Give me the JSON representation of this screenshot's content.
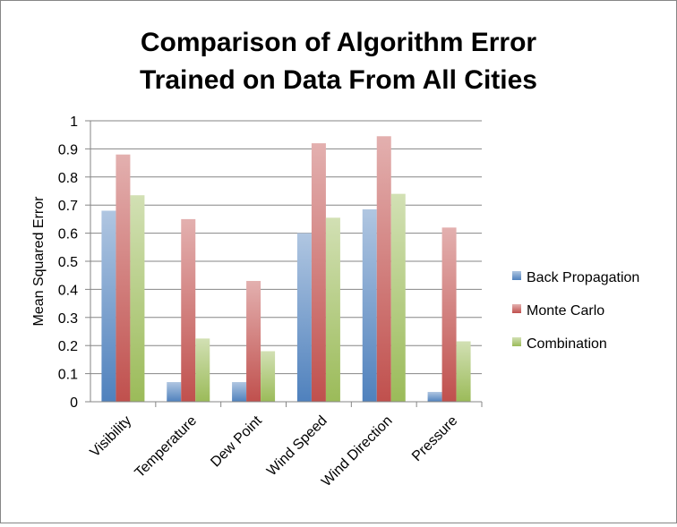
{
  "chart_data": {
    "type": "bar",
    "title_lines": [
      "Comparison of Algorithm Error",
      "Trained on Data From All Cities"
    ],
    "xlabel": "",
    "ylabel": "Mean Squared Error",
    "ylim": [
      0,
      1
    ],
    "yticks": [
      "0",
      "0.1",
      "0.2",
      "0.3",
      "0.4",
      "0.5",
      "0.6",
      "0.7",
      "0.8",
      "0.9",
      "1"
    ],
    "grid": true,
    "legend_position": "right",
    "categories": [
      "Visibility",
      "Temperature",
      "Dew Point",
      "Wind Speed",
      "Wind Direction",
      "Pressure"
    ],
    "series": [
      {
        "name": "Back Propagation",
        "color": "#4F81BD",
        "values": [
          0.68,
          0.07,
          0.07,
          0.6,
          0.685,
          0.035
        ]
      },
      {
        "name": "Monte Carlo",
        "color": "#C0504D",
        "values": [
          0.88,
          0.65,
          0.43,
          0.92,
          0.945,
          0.62
        ]
      },
      {
        "name": "Combination",
        "color": "#9BBB59",
        "values": [
          0.735,
          0.225,
          0.18,
          0.655,
          0.74,
          0.215
        ]
      }
    ]
  }
}
